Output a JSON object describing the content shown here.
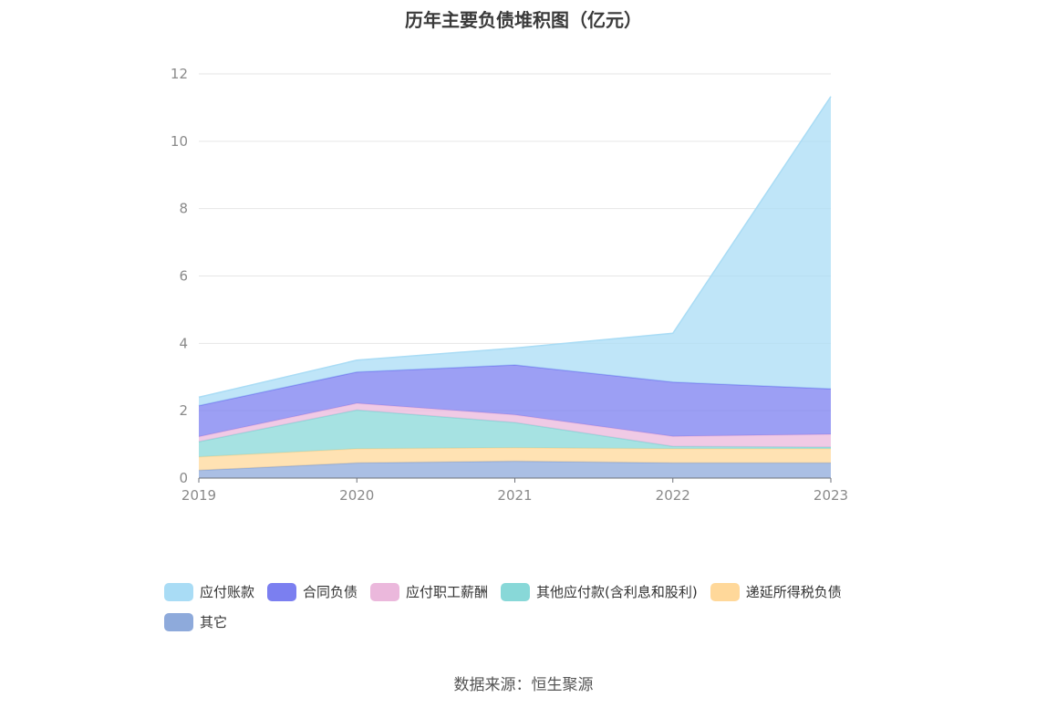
{
  "chart_data": {
    "type": "area",
    "title": "历年主要负债堆积图（亿元）",
    "categories": [
      "2019",
      "2020",
      "2021",
      "2022",
      "2023"
    ],
    "ylim": [
      0,
      12
    ],
    "yticks": [
      "0",
      "2",
      "4",
      "6",
      "8",
      "10",
      "12"
    ],
    "grid": true,
    "stacked": true,
    "legend_position": "bottom",
    "series": [
      {
        "name": "其它",
        "color": "#8eaadb",
        "values": [
          0.23,
          0.45,
          0.5,
          0.45,
          0.45
        ]
      },
      {
        "name": "递延所得税负债",
        "color": "#ffd89a",
        "values": [
          0.4,
          0.42,
          0.4,
          0.42,
          0.42
        ]
      },
      {
        "name": "其他应付款(含利息和股利)",
        "color": "#88d8d8",
        "values": [
          0.45,
          1.15,
          0.75,
          0.07,
          0.05
        ]
      },
      {
        "name": "应付职工薪酬",
        "color": "#ebb8dc",
        "values": [
          0.15,
          0.2,
          0.23,
          0.3,
          0.38
        ]
      },
      {
        "name": "合同负债",
        "color": "#7b7ff0",
        "values": [
          0.92,
          0.93,
          1.48,
          1.61,
          1.35
        ]
      },
      {
        "name": "应付账款",
        "color": "#a9dcf5",
        "values": [
          0.25,
          0.35,
          0.5,
          1.45,
          8.68
        ]
      }
    ],
    "legend_order": [
      "应付账款",
      "合同负债",
      "应付职工薪酬",
      "其他应付款(含利息和股利)",
      "递延所得税负债",
      "其它"
    ]
  },
  "source_text": "数据来源：恒生聚源"
}
